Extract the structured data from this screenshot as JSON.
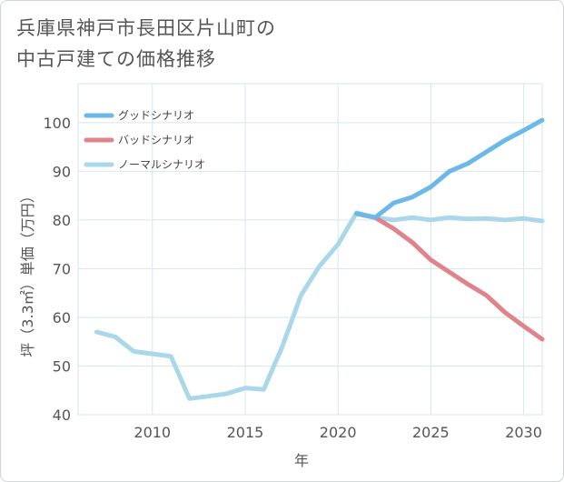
{
  "title_line1": "兵庫県神戸市長田区片山町の",
  "title_line2": "中古戸建ての価格推移",
  "chart_data": {
    "type": "line",
    "title": "兵庫県神戸市長田区片山町の中古戸建ての価格推移",
    "xlabel": "年",
    "ylabel": "坪（3.3㎡）単価（万円）",
    "xlim": [
      2006,
      2031
    ],
    "ylim": [
      40,
      108
    ],
    "xticks": [
      2010,
      2015,
      2020,
      2025,
      2030
    ],
    "yticks": [
      40,
      50,
      60,
      70,
      80,
      90,
      100
    ],
    "grid": true,
    "legend_position": "top-left",
    "series": [
      {
        "name": "グッドシナリオ",
        "color": "#6cb8e8",
        "x": [
          2021,
          2022,
          2023,
          2024,
          2025,
          2026,
          2027,
          2028,
          2029,
          2030,
          2031
        ],
        "y": [
          81.3,
          80.5,
          83.5,
          84.7,
          86.8,
          90.0,
          91.6,
          94.0,
          96.4,
          98.4,
          100.5
        ]
      },
      {
        "name": "バッドシナリオ",
        "color": "#e0848c",
        "x": [
          2021,
          2022,
          2023,
          2024,
          2025,
          2026,
          2027,
          2028,
          2029,
          2030,
          2031
        ],
        "y": [
          81.3,
          80.5,
          78.2,
          75.4,
          71.8,
          69.3,
          66.8,
          64.5,
          61.0,
          58.2,
          55.5
        ]
      },
      {
        "name": "ノーマルシナリオ",
        "color": "#aad8ea",
        "x": [
          2007,
          2008,
          2009,
          2010,
          2011,
          2012,
          2013,
          2014,
          2015,
          2016,
          2017,
          2018,
          2019,
          2020,
          2021,
          2022,
          2023,
          2024,
          2025,
          2026,
          2027,
          2028,
          2029,
          2030,
          2031
        ],
        "y": [
          57.0,
          56.0,
          53.0,
          52.5,
          52.0,
          43.3,
          43.8,
          44.3,
          45.5,
          45.2,
          54.0,
          64.5,
          70.5,
          75.0,
          81.5,
          80.5,
          80.0,
          80.5,
          80.0,
          80.5,
          80.2,
          80.3,
          80.0,
          80.3,
          79.8
        ]
      }
    ]
  }
}
